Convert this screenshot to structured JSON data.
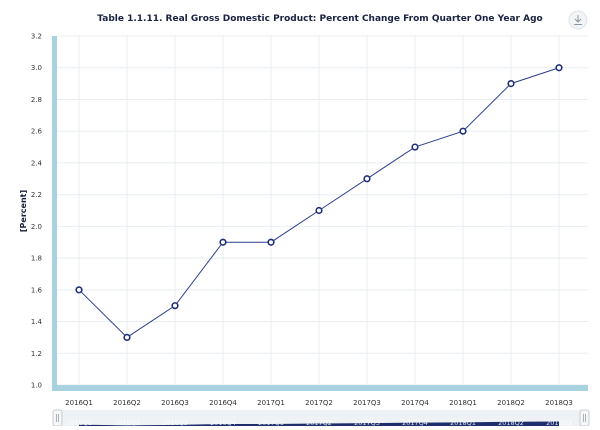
{
  "chart_data": {
    "type": "line",
    "title": "Table 1.1.11. Real Gross Domestic Product: Percent Change From Quarter One Year Ago",
    "xlabel": "",
    "ylabel": "[Percent]",
    "categories": [
      "2016Q1",
      "2016Q2",
      "2016Q3",
      "2016Q4",
      "2017Q1",
      "2017Q2",
      "2017Q3",
      "2017Q4",
      "2018Q1",
      "2018Q2",
      "2018Q3"
    ],
    "series": [
      {
        "values": [
          1.6,
          1.3,
          1.5,
          1.9,
          1.9,
          2.1,
          2.3,
          2.5,
          2.6,
          2.9,
          3.0
        ]
      }
    ],
    "ylim": [
      1.0,
      3.2
    ],
    "yticks": [
      "1.0",
      "1.2",
      "1.4",
      "1.6",
      "1.8",
      "2.0",
      "2.2",
      "2.4",
      "2.6",
      "2.8",
      "3.0",
      "3.2"
    ],
    "grid": true,
    "navigator_ticks": [
      "2016Q1",
      "2016Q2",
      "2016Q3",
      "2016Q4",
      "2017Q1",
      "2017Q2",
      "2017Q3",
      "2017Q4",
      "2018Q1",
      "2018Q2",
      "2018Q3"
    ],
    "colors": {
      "line": "#2a3f8f",
      "axis_band": "#a7d3e0",
      "navigator": "#1f2f6e"
    }
  },
  "toolbar": {
    "download_icon": "download-icon"
  },
  "navigator": {
    "left_handle": "drag-handle-icon",
    "right_handle": "drag-handle-icon"
  }
}
